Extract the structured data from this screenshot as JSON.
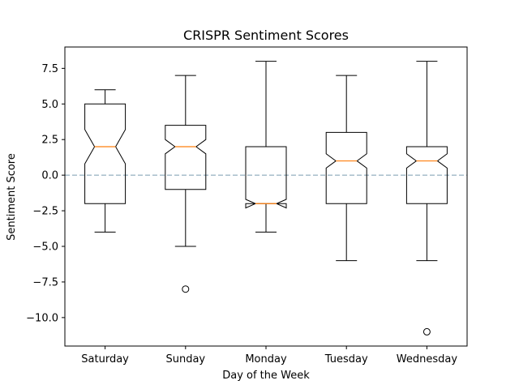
{
  "chart_data": {
    "type": "box",
    "title": "CRISPR Sentiment Scores",
    "xlabel": "Day of the Week",
    "ylabel": "Sentiment Score",
    "ylim": [
      -12.0,
      9.0
    ],
    "yticks": [
      -10.0,
      -7.5,
      -5.0,
      -2.5,
      0.0,
      2.5,
      5.0,
      7.5
    ],
    "ytick_labels": [
      "−10.0",
      "−7.5",
      "−5.0",
      "−2.5",
      "0.0",
      "2.5",
      "5.0",
      "7.5"
    ],
    "notched": true,
    "reference_line": {
      "y": 0.0,
      "style": "dashed",
      "color": "#7a9cb0"
    },
    "categories": [
      "Saturday",
      "Sunday",
      "Monday",
      "Tuesday",
      "Wednesday"
    ],
    "boxes": [
      {
        "label": "Saturday",
        "whisker_low": -4,
        "q1": -2,
        "median": 2,
        "q3": 5,
        "whisker_high": 6,
        "notch_low": 0.8,
        "notch_high": 3.2,
        "outliers": []
      },
      {
        "label": "Sunday",
        "whisker_low": -5,
        "q1": -1,
        "median": 2,
        "q3": 3.5,
        "whisker_high": 7,
        "notch_low": 1.5,
        "notch_high": 2.5,
        "outliers": [
          -8
        ]
      },
      {
        "label": "Monday",
        "whisker_low": -4,
        "q1": -2,
        "median": -2,
        "q3": 2,
        "whisker_high": 8,
        "notch_low": -2.3,
        "notch_high": -1.7,
        "outliers": []
      },
      {
        "label": "Tuesday",
        "whisker_low": -6,
        "q1": -2,
        "median": 1,
        "q3": 3,
        "whisker_high": 7,
        "notch_low": 0.5,
        "notch_high": 1.5,
        "outliers": []
      },
      {
        "label": "Wednesday",
        "whisker_low": -6,
        "q1": -2,
        "median": 1,
        "q3": 2,
        "whisker_high": 8,
        "notch_low": 0.5,
        "notch_high": 1.5,
        "outliers": [
          -11
        ]
      }
    ],
    "colors": {
      "box": "#000000",
      "median": "#ff7f0e",
      "reference": "#7a9cb0"
    },
    "grid": false,
    "legend": "none"
  }
}
